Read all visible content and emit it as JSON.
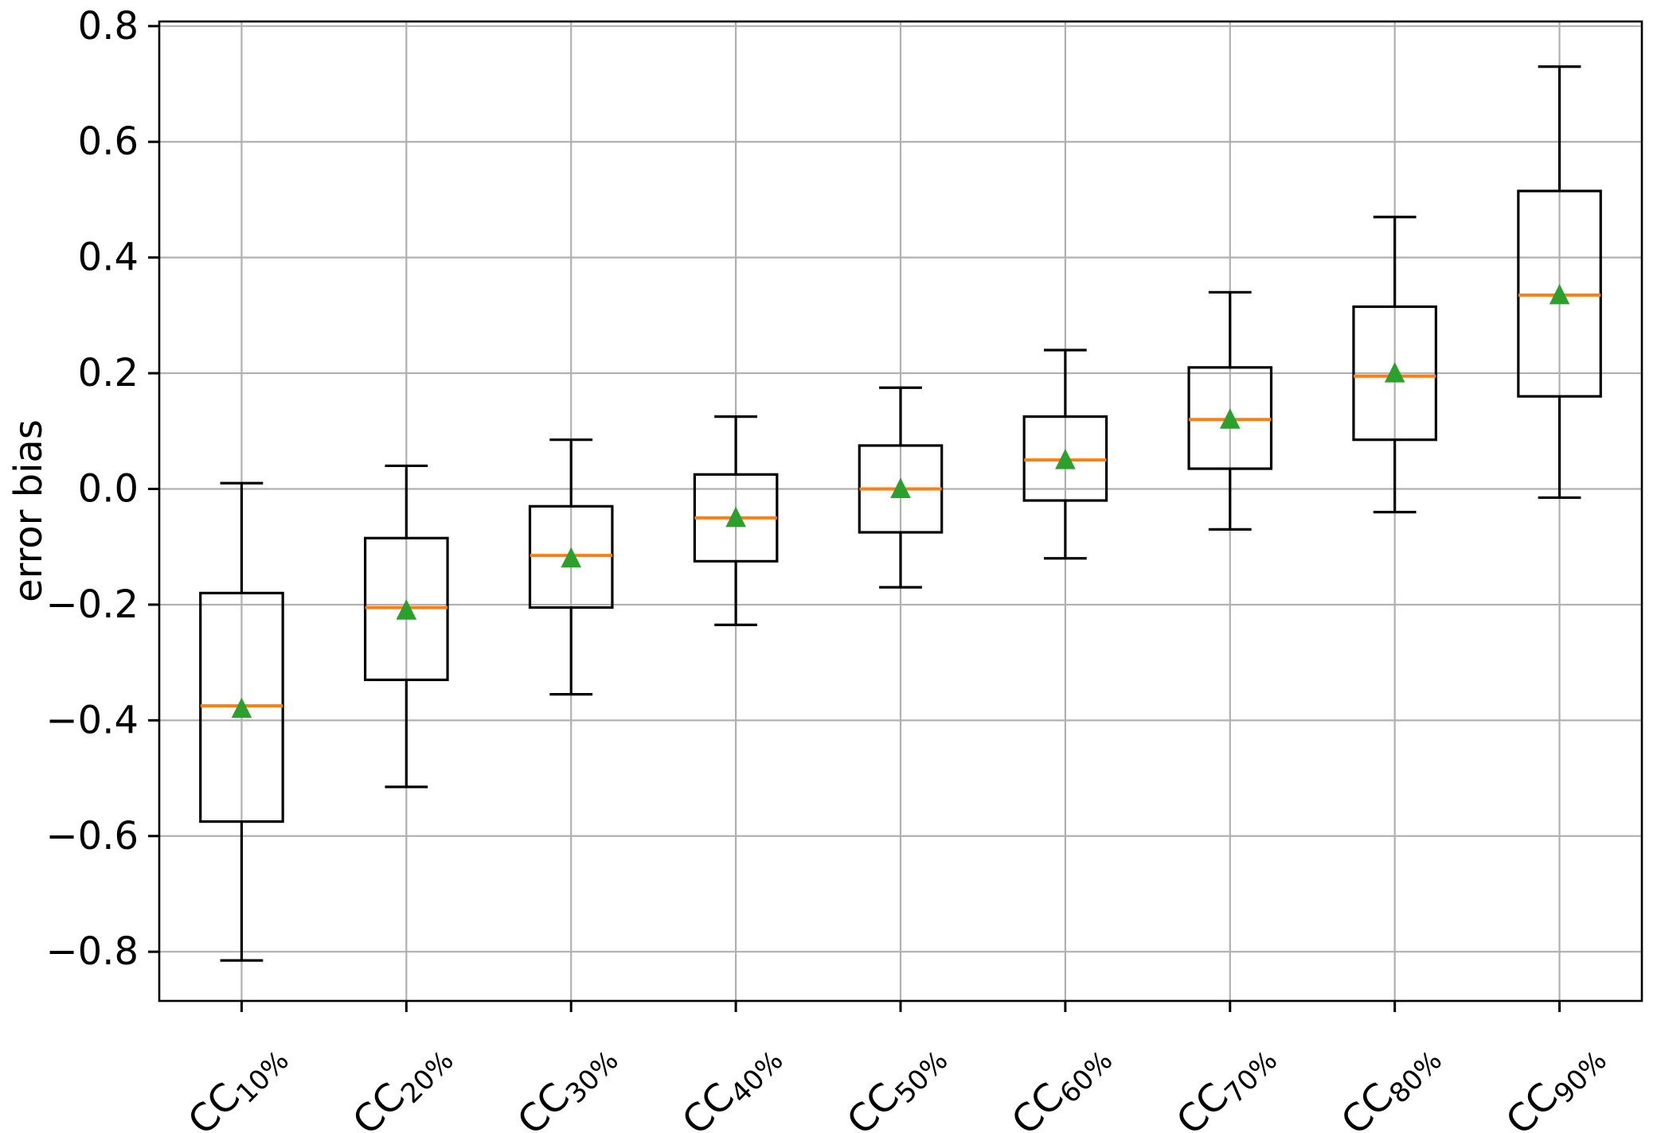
{
  "chart_data": {
    "type": "boxplot",
    "title": "",
    "xlabel": "",
    "ylabel": "error bias",
    "ylim": [
      -0.885,
      0.808
    ],
    "yticks": [
      -0.8,
      -0.6,
      -0.4,
      -0.2,
      0.0,
      0.2,
      0.4,
      0.6,
      0.8
    ],
    "ytick_labels": [
      "−0.8",
      "−0.6",
      "−0.4",
      "−0.2",
      "0.0",
      "0.2",
      "0.4",
      "0.6",
      "0.8"
    ],
    "grid": true,
    "legend": "none",
    "xtick_rotation_deg": 45,
    "mean_marker": "triangle-up",
    "colors": {
      "box": "#000000",
      "whisker": "#000000",
      "median": "#ff7f0e",
      "mean": "#2ca02c",
      "grid": "#b0b0b0",
      "spine": "#000000",
      "background": "#ffffff"
    },
    "categories": [
      {
        "label": "CC10%",
        "prefix": "CC",
        "subscript": "10%"
      },
      {
        "label": "CC20%",
        "prefix": "CC",
        "subscript": "20%"
      },
      {
        "label": "CC30%",
        "prefix": "CC",
        "subscript": "30%"
      },
      {
        "label": "CC40%",
        "prefix": "CC",
        "subscript": "40%"
      },
      {
        "label": "CC50%",
        "prefix": "CC",
        "subscript": "50%"
      },
      {
        "label": "CC60%",
        "prefix": "CC",
        "subscript": "60%"
      },
      {
        "label": "CC70%",
        "prefix": "CC",
        "subscript": "70%"
      },
      {
        "label": "CC80%",
        "prefix": "CC",
        "subscript": "80%"
      },
      {
        "label": "CC90%",
        "prefix": "CC",
        "subscript": "90%"
      }
    ],
    "series": [
      {
        "category": "CC10%",
        "whisker_low": -0.815,
        "q1": -0.575,
        "median": -0.375,
        "q3": -0.18,
        "whisker_high": 0.01,
        "mean": -0.38
      },
      {
        "category": "CC20%",
        "whisker_low": -0.515,
        "q1": -0.33,
        "median": -0.205,
        "q3": -0.085,
        "whisker_high": 0.04,
        "mean": -0.21
      },
      {
        "category": "CC30%",
        "whisker_low": -0.355,
        "q1": -0.205,
        "median": -0.115,
        "q3": -0.03,
        "whisker_high": 0.085,
        "mean": -0.12
      },
      {
        "category": "CC40%",
        "whisker_low": -0.235,
        "q1": -0.125,
        "median": -0.05,
        "q3": 0.025,
        "whisker_high": 0.125,
        "mean": -0.05
      },
      {
        "category": "CC50%",
        "whisker_low": -0.17,
        "q1": -0.075,
        "median": 0.0,
        "q3": 0.075,
        "whisker_high": 0.175,
        "mean": 0.0
      },
      {
        "category": "CC60%",
        "whisker_low": -0.12,
        "q1": -0.02,
        "median": 0.05,
        "q3": 0.125,
        "whisker_high": 0.24,
        "mean": 0.05
      },
      {
        "category": "CC70%",
        "whisker_low": -0.07,
        "q1": 0.035,
        "median": 0.12,
        "q3": 0.21,
        "whisker_high": 0.34,
        "mean": 0.12
      },
      {
        "category": "CC80%",
        "whisker_low": -0.04,
        "q1": 0.085,
        "median": 0.195,
        "q3": 0.315,
        "whisker_high": 0.47,
        "mean": 0.2
      },
      {
        "category": "CC90%",
        "whisker_low": -0.015,
        "q1": 0.16,
        "median": 0.335,
        "q3": 0.515,
        "whisker_high": 0.73,
        "mean": 0.335
      }
    ]
  }
}
